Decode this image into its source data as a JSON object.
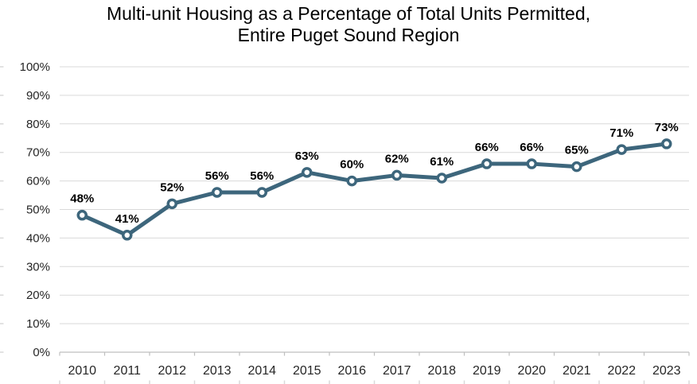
{
  "title": {
    "line1": "Multi-unit Housing as a Percentage of Total Units Permitted,",
    "line2": "Entire Puget Sound Region"
  },
  "chart_data": {
    "type": "line",
    "title": "Multi-unit Housing as a Percentage of Total Units Permitted, Entire Puget Sound Region",
    "categories": [
      "2010",
      "2011",
      "2012",
      "2013",
      "2014",
      "2015",
      "2016",
      "2017",
      "2018",
      "2019",
      "2020",
      "2021",
      "2022",
      "2023"
    ],
    "values": [
      48,
      41,
      52,
      56,
      56,
      63,
      60,
      62,
      61,
      66,
      66,
      65,
      71,
      73
    ],
    "data_labels": [
      "48%",
      "41%",
      "52%",
      "56%",
      "56%",
      "63%",
      "60%",
      "62%",
      "61%",
      "66%",
      "66%",
      "65%",
      "71%",
      "73%"
    ],
    "y_ticks": [
      "0%",
      "10%",
      "20%",
      "30%",
      "40%",
      "50%",
      "60%",
      "70%",
      "80%",
      "90%",
      "100%"
    ],
    "ylim": [
      0,
      100
    ],
    "xlabel": "",
    "ylabel": "",
    "grid": true,
    "legend": "none",
    "colors": {
      "line": "#3D667C",
      "marker_fill": "#FFFFFF",
      "gridline": "#D9D9D9",
      "axis": "#BFBFBF",
      "edge_tick": "#D9D9D9",
      "data_label": "#000000",
      "tick_label": "#262626",
      "title": "#000000"
    }
  }
}
